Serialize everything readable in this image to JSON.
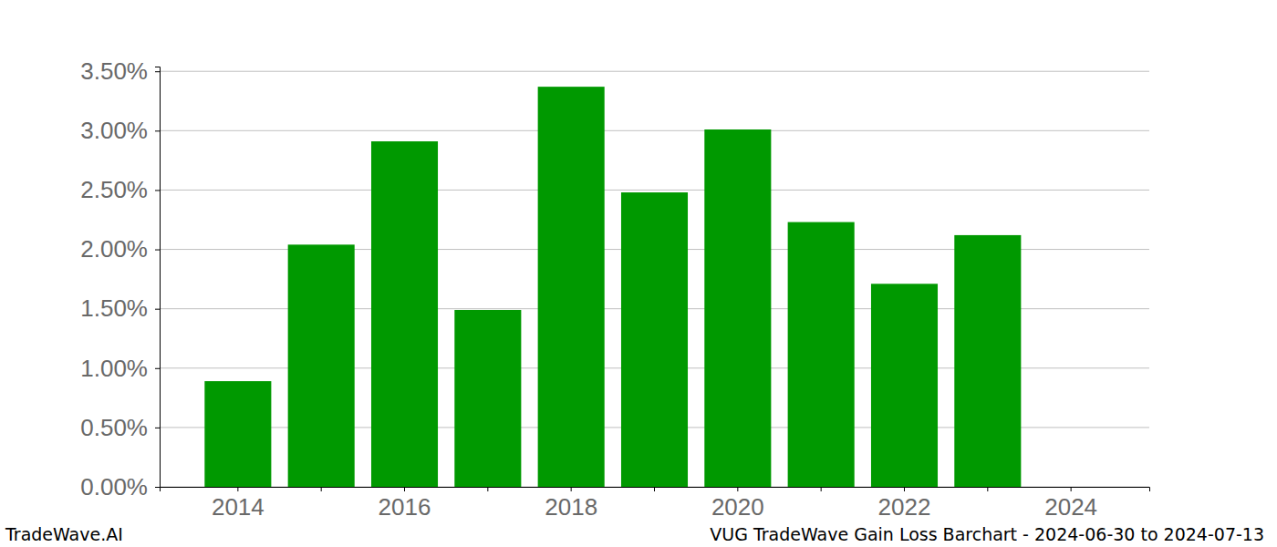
{
  "chart_data": {
    "type": "bar",
    "title": "VUG TradeWave Gain Loss Barchart - 2024-06-30 to 2024-07-13",
    "annotations": [
      "TradeWave.AI"
    ],
    "categories": [
      "2014",
      null,
      "2016",
      null,
      "2018",
      null,
      "2020",
      null,
      "2022",
      null,
      "2024"
    ],
    "values": [
      0.89,
      2.04,
      2.91,
      1.49,
      3.37,
      2.48,
      3.01,
      2.23,
      1.71,
      2.12,
      0
    ],
    "color": "#009900",
    "ylim": [
      0,
      3.54
    ],
    "yticks": [
      {
        "value": 0,
        "label": "0.00%"
      },
      {
        "value": 0.5,
        "label": "0.50%"
      },
      {
        "value": 1,
        "label": "1.00%"
      },
      {
        "value": 1.5,
        "label": "1.50%"
      },
      {
        "value": 2,
        "label": "2.00%"
      },
      {
        "value": 2.5,
        "label": "2.50%"
      },
      {
        "value": 3,
        "label": "3.00%"
      },
      {
        "value": 3.5,
        "label": "3.50%"
      }
    ],
    "grid": true
  }
}
